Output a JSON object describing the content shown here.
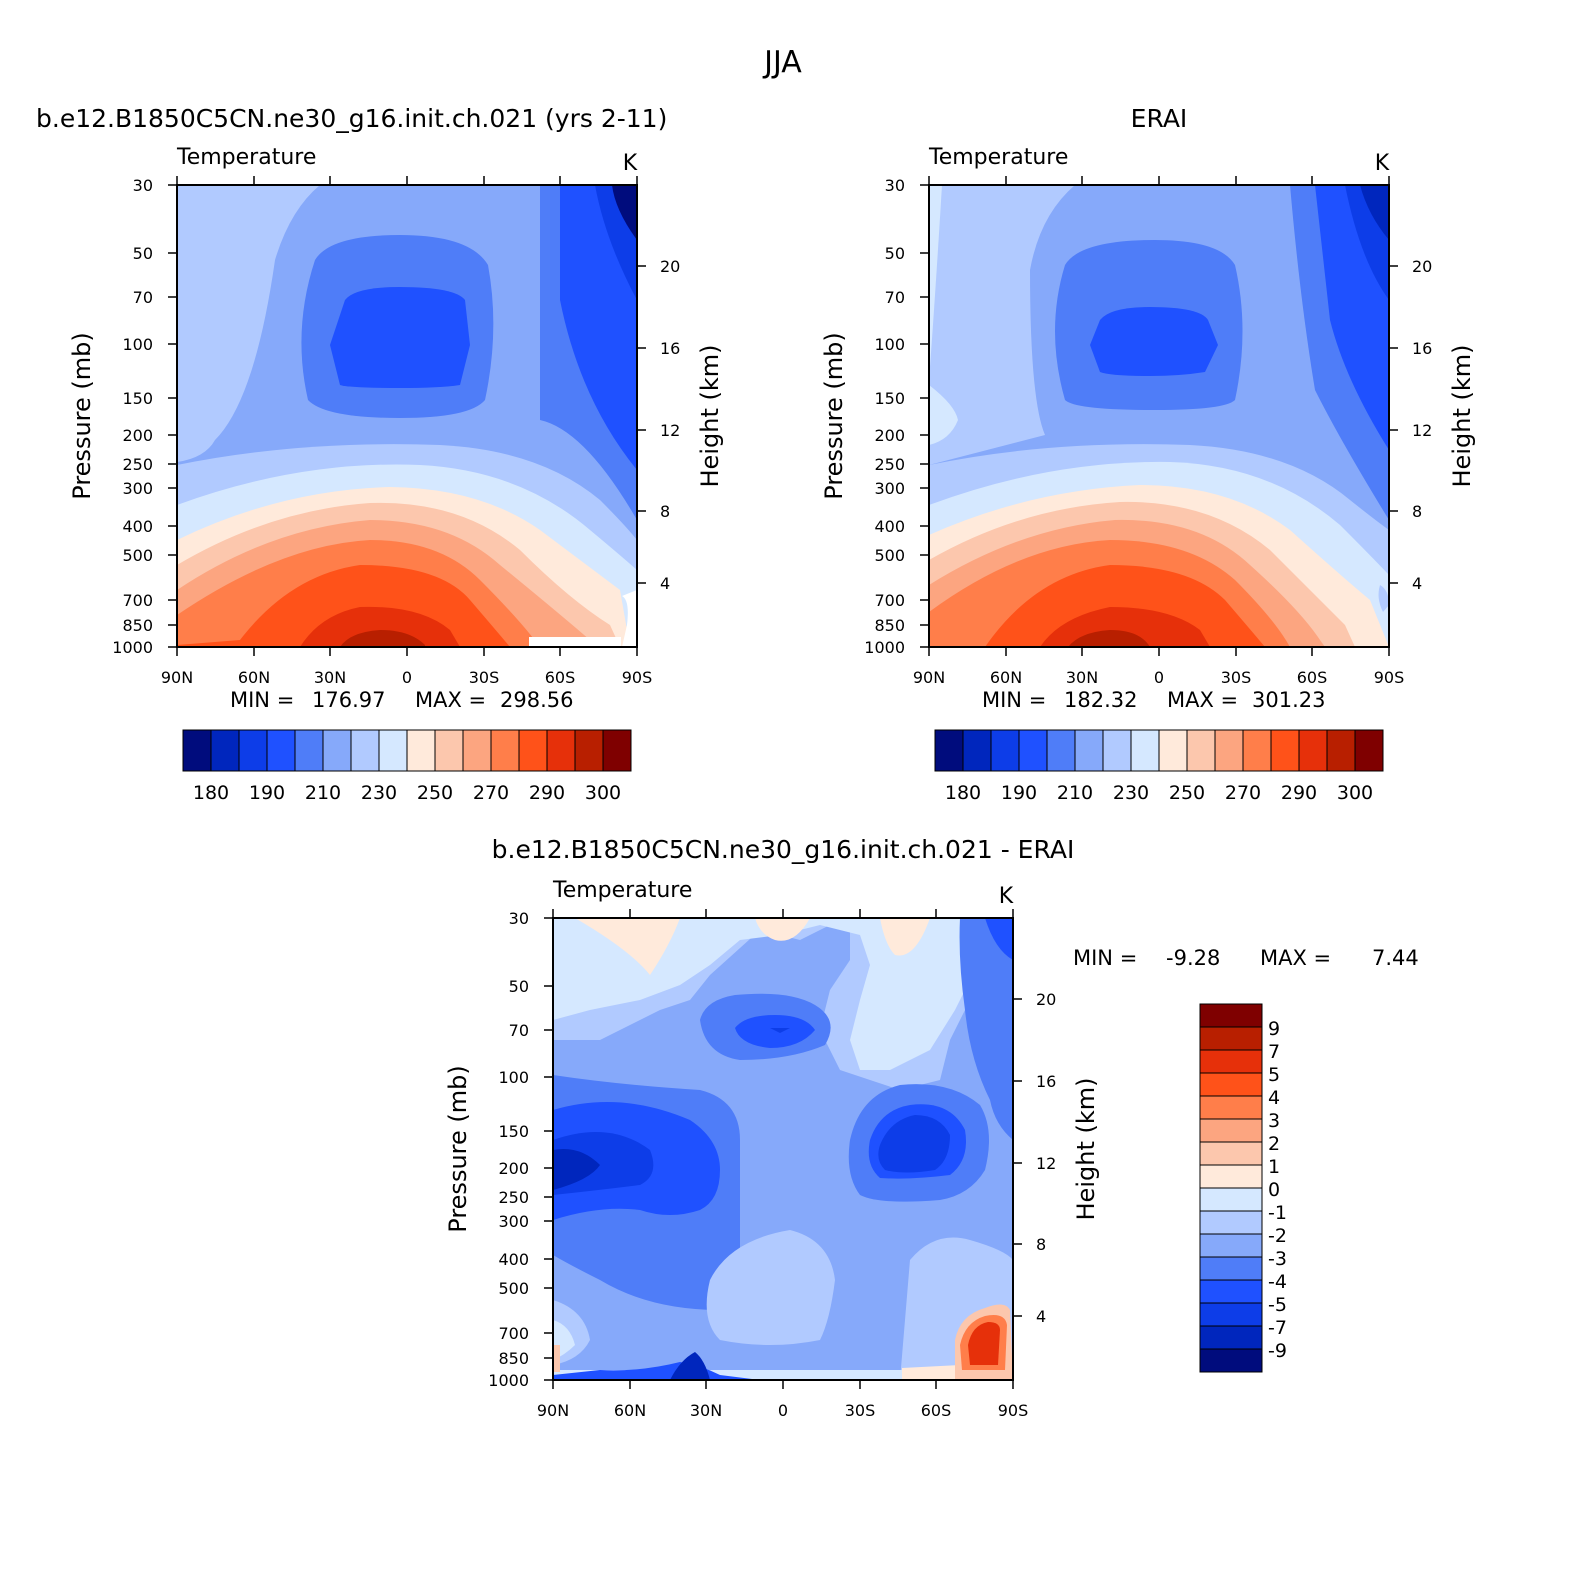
{
  "figure_title": "JJA",
  "colors": {
    "temperature_scale": [
      "#000c7d",
      "#0026bd",
      "#0d3de8",
      "#1f51ff",
      "#4f7df8",
      "#86a9fa",
      "#b1caff",
      "#d5e8ff",
      "#ffeadb",
      "#fcc7ad",
      "#fca580",
      "#ff7e4a",
      "#ff5219",
      "#e6300a",
      "#b81f00",
      "#7f0000"
    ],
    "difference_scale": [
      "#000c7d",
      "#0026bd",
      "#0d3de8",
      "#1f51ff",
      "#4f7df8",
      "#86a9fa",
      "#b1caff",
      "#d5e8ff",
      "#ffeadb",
      "#fcc7ad",
      "#fca580",
      "#ff7e4a",
      "#ff5219",
      "#e6300a",
      "#b81f00",
      "#7f0000"
    ]
  },
  "chart_data": [
    {
      "type": "heatmap",
      "title": "b.e12.B1850C5CN.ne30_g16.init.ch.021 (yrs 2-11)",
      "subtitle": "Temperature",
      "units": "K",
      "xlabel": "",
      "ylabel": "Pressure (mb)",
      "ylabel_right": "Height (km)",
      "x_ticks": [
        "90N",
        "60N",
        "30N",
        "0",
        "30S",
        "60S",
        "90S"
      ],
      "y_ticks": [
        "30",
        "50",
        "70",
        "100",
        "150",
        "200",
        "250",
        "300",
        "400",
        "500",
        "700",
        "850",
        "1000"
      ],
      "y_ticks_right": [
        "20",
        "16",
        "12",
        "8",
        "4"
      ],
      "y_scale": "log",
      "ylim": [
        1000,
        30
      ],
      "min_label": "MIN =",
      "min_value": "176.97",
      "max_label": "MAX =",
      "max_value": "298.56",
      "colorbar_labels": [
        "180",
        "190",
        "210",
        "230",
        "250",
        "270",
        "290",
        "300"
      ],
      "grid": false
    },
    {
      "type": "heatmap",
      "title": "ERAI",
      "subtitle": "Temperature",
      "units": "K",
      "xlabel": "",
      "ylabel": "Pressure (mb)",
      "ylabel_right": "Height (km)",
      "x_ticks": [
        "90N",
        "60N",
        "30N",
        "0",
        "30S",
        "60S",
        "90S"
      ],
      "y_ticks": [
        "30",
        "50",
        "70",
        "100",
        "150",
        "200",
        "250",
        "300",
        "400",
        "500",
        "700",
        "850",
        "1000"
      ],
      "y_ticks_right": [
        "20",
        "16",
        "12",
        "8",
        "4"
      ],
      "y_scale": "log",
      "ylim": [
        1000,
        30
      ],
      "min_label": "MIN =",
      "min_value": "182.32",
      "max_label": "MAX =",
      "max_value": "301.23",
      "colorbar_labels": [
        "180",
        "190",
        "210",
        "230",
        "250",
        "270",
        "290",
        "300"
      ],
      "grid": false
    },
    {
      "type": "heatmap",
      "title": "b.e12.B1850C5CN.ne30_g16.init.ch.021 - ERAI",
      "subtitle": "Temperature",
      "units": "K",
      "xlabel": "",
      "ylabel": "Pressure (mb)",
      "ylabel_right": "Height (km)",
      "x_ticks": [
        "90N",
        "60N",
        "30N",
        "0",
        "30S",
        "60S",
        "90S"
      ],
      "y_ticks": [
        "30",
        "50",
        "70",
        "100",
        "150",
        "200",
        "250",
        "300",
        "400",
        "500",
        "700",
        "850",
        "1000"
      ],
      "y_ticks_right": [
        "20",
        "16",
        "12",
        "8",
        "4"
      ],
      "y_scale": "log",
      "ylim": [
        1000,
        30
      ],
      "min_label": "MIN =",
      "min_value": "-9.28",
      "max_label": "MAX =",
      "max_value": "7.44",
      "colorbar_labels": [
        "9",
        "7",
        "5",
        "4",
        "3",
        "2",
        "1",
        "0",
        "-1",
        "-2",
        "-3",
        "-4",
        "-5",
        "-7",
        "-9"
      ],
      "grid": false
    }
  ]
}
